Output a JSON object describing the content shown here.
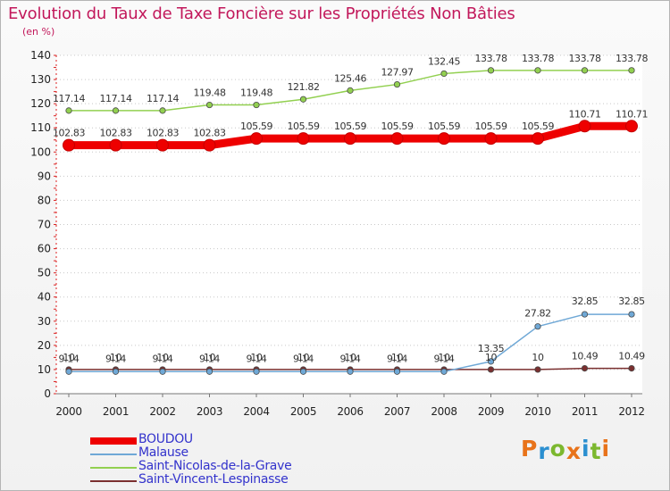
{
  "header": {
    "title": "Evolution du Taux de Taxe Foncière sur les Propriétés Non Bâties",
    "subtitle": "(en %)"
  },
  "logo": {
    "text": "Proxiti",
    "colors": [
      "#e8731a",
      "#2b8fd0",
      "#7cb82f",
      "#e8731a",
      "#2b8fd0",
      "#7cb82f",
      "#e8731a"
    ]
  },
  "colors": {
    "title": "#c2185b",
    "legend_text": "#3333cc"
  },
  "chart_data": {
    "type": "line",
    "title": "Evolution du Taux de Taxe Foncière sur les Propriétés Non Bâties",
    "ylabel": "(en %)",
    "xlabel": "",
    "x": [
      "2000",
      "2001",
      "2002",
      "2003",
      "2004",
      "2005",
      "2006",
      "2007",
      "2008",
      "2009",
      "2010",
      "2011",
      "2012"
    ],
    "ylim": [
      0,
      140
    ],
    "yticks": [
      "0",
      "10",
      "20",
      "30",
      "40",
      "50",
      "60",
      "70",
      "80",
      "90",
      "100",
      "110",
      "120",
      "130",
      "140"
    ],
    "grid": "horizontal dotted",
    "legend_position": "bottom-left",
    "series": [
      {
        "name": "BOUDOU",
        "color": "#ee0000",
        "values": [
          102.83,
          102.83,
          102.83,
          102.83,
          105.59,
          105.59,
          105.59,
          105.59,
          105.59,
          105.59,
          105.59,
          110.71,
          110.71
        ],
        "labels": [
          "102.83",
          "102.83",
          "102.83",
          "102.83",
          "105.59",
          "105.59",
          "105.59",
          "105.59",
          "105.59",
          "105.59",
          "105.59",
          "110.71",
          "110.71"
        ]
      },
      {
        "name": "Malause",
        "color": "#6fa8d6",
        "values": [
          9.14,
          9.14,
          9.14,
          9.14,
          9.14,
          9.14,
          9.14,
          9.14,
          9.14,
          13.35,
          27.82,
          32.85,
          32.85
        ],
        "labels": [
          "9.14",
          "9.14",
          "9.14",
          "9.14",
          "9.14",
          "9.14",
          "9.14",
          "9.14",
          "9.14",
          "13.35",
          "27.82",
          "32.85",
          "32.85"
        ]
      },
      {
        "name": "Saint-Nicolas-de-la-Grave",
        "color": "#92d050",
        "values": [
          117.14,
          117.14,
          117.14,
          119.48,
          119.48,
          121.82,
          125.46,
          127.97,
          132.45,
          133.78,
          133.78,
          133.78,
          133.78
        ],
        "labels": [
          "117.14",
          "117.14",
          "117.14",
          "119.48",
          "119.48",
          "121.82",
          "125.46",
          "127.97",
          "132.45",
          "133.78",
          "133.78",
          "133.78",
          "133.78"
        ]
      },
      {
        "name": "Saint-Vincent-Lespinasse",
        "color": "#7a2f2f",
        "values": [
          10,
          10,
          10,
          10,
          10,
          10,
          10,
          10,
          10,
          10,
          10,
          10.49,
          10.49
        ],
        "labels": [
          "10",
          "10",
          "10",
          "10",
          "10",
          "10",
          "10",
          "10",
          "10",
          "10",
          "10",
          "10.49",
          "10.49"
        ]
      }
    ]
  }
}
